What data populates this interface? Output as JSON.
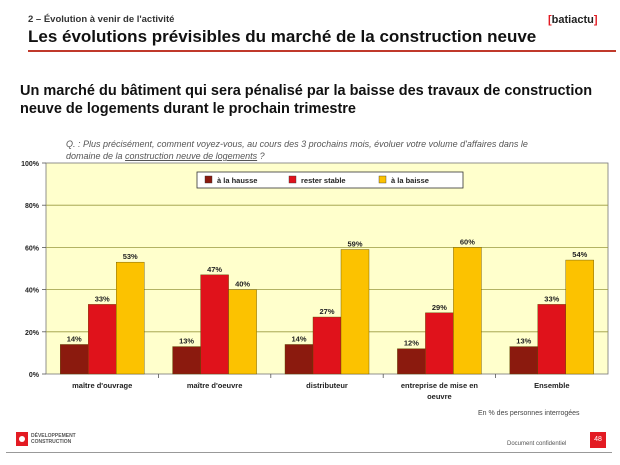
{
  "header": {
    "subtitle": "2 – Évolution à venir de l'activité",
    "title": "Les évolutions prévisibles du marché de la construction neuve",
    "brand_bracket_open": "[",
    "brand_name": "batiactu",
    "brand_bracket_close": "]"
  },
  "headline": "Un marché du bâtiment qui sera pénalisé par la baisse des travaux de construction neuve de logements durant le prochain trimestre",
  "question": {
    "prefix": "Q. : Plus précisément, comment voyez-vous, au cours des 3 prochains mois, évoluer votre volume d'affaires dans le domaine de la ",
    "underlined": "construction neuve de logements",
    "suffix": " ?"
  },
  "footer": {
    "note": "En % des personnes interrogées",
    "logo_text": "DÉVELOPPEMENT CONSTRUCTION",
    "confidential": "Document confidentiel",
    "page": "48"
  },
  "colors": {
    "hausse": "#8b1a0e",
    "stable": "#e0121b",
    "baisse": "#fcc200",
    "plot_bg": "#ffffcc",
    "grid": "#9a9a40",
    "accent": "#e31b23"
  },
  "chart_data": {
    "type": "bar",
    "title": "",
    "xlabel": "",
    "ylabel": "",
    "ylim": [
      0,
      100
    ],
    "yticks": [
      0,
      20,
      40,
      60,
      80,
      100
    ],
    "ytick_labels": [
      "0%",
      "20%",
      "40%",
      "60%",
      "80%",
      "100%"
    ],
    "legend_position": "top-center",
    "categories": [
      "maître d'ouvrage",
      "maître d'oeuvre",
      "distributeur",
      "entreprise de mise en oeuvre",
      "Ensemble"
    ],
    "series": [
      {
        "name": "à la hausse",
        "color_key": "hausse",
        "values": [
          14,
          13,
          14,
          12,
          13
        ]
      },
      {
        "name": "rester stable",
        "color_key": "stable",
        "values": [
          33,
          47,
          27,
          29,
          33
        ]
      },
      {
        "name": "à la baisse",
        "color_key": "baisse",
        "values": [
          53,
          40,
          59,
          60,
          54
        ]
      }
    ]
  }
}
